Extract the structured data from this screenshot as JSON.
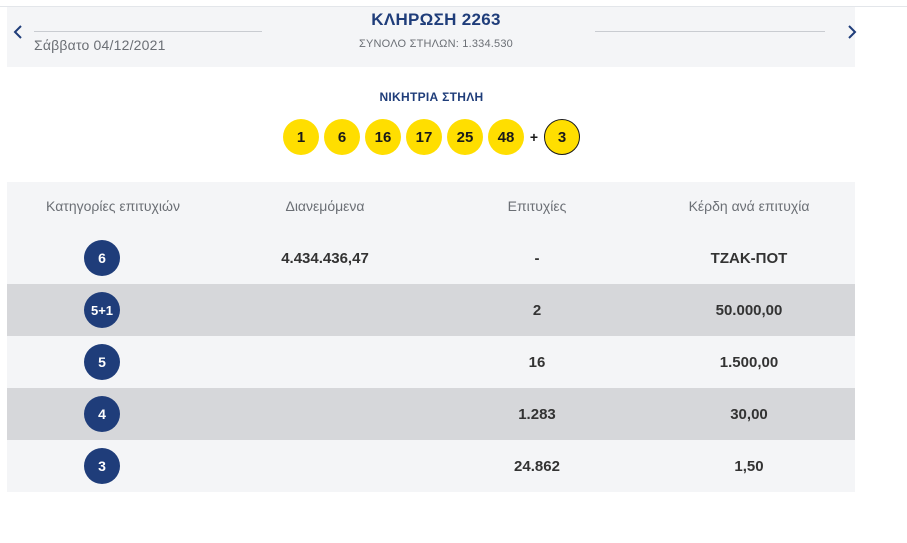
{
  "header": {
    "date": "Σάββατο 04/12/2021",
    "title": "ΚΛΗΡΩΣΗ 2263",
    "total_columns": "ΣΥΝΟΛΟ ΣΤΗΛΩΝ: 1.334.530",
    "prev_icon": "chevron-left-icon",
    "next_icon": "chevron-right-icon"
  },
  "winning": {
    "label": "ΝΙΚΗΤΡΙΑ ΣΤΗΛΗ",
    "numbers": [
      "1",
      "6",
      "16",
      "17",
      "25",
      "48"
    ],
    "plus": "+",
    "joker": "3"
  },
  "table": {
    "headers": [
      "Κατηγορίες επιτυχιών",
      "Διανεμόμενα",
      "Επιτυχίες",
      "Κέρδη ανά επιτυχία"
    ],
    "rows": [
      {
        "category": "6",
        "distributed": "4.434.436,47",
        "winners": "-",
        "prize": "ΤΖΑΚ-ΠΟΤ"
      },
      {
        "category": "5+1",
        "distributed": "",
        "winners": "2",
        "prize": "50.000,00"
      },
      {
        "category": "5",
        "distributed": "",
        "winners": "16",
        "prize": "1.500,00"
      },
      {
        "category": "4",
        "distributed": "",
        "winners": "1.283",
        "prize": "30,00"
      },
      {
        "category": "3",
        "distributed": "",
        "winners": "24.862",
        "prize": "1,50"
      }
    ]
  },
  "colors": {
    "navy": "#1f3d7a",
    "ball_yellow": "#ffde00",
    "row_light": "#f4f5f7",
    "row_dark": "#d6d7da"
  }
}
